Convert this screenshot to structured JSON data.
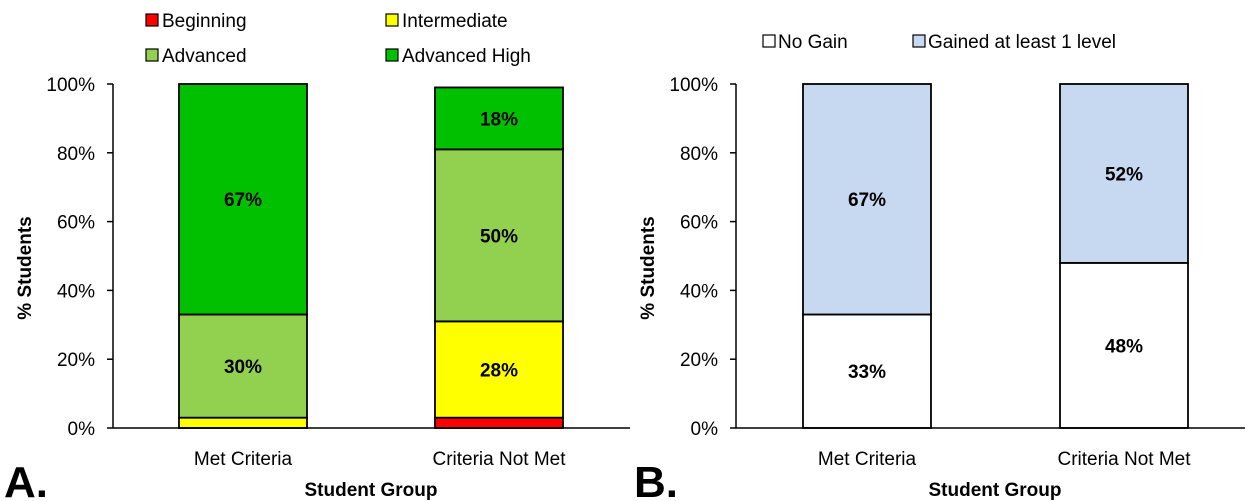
{
  "chart_data": [
    {
      "type": "bar",
      "stacked": true,
      "panel_label": "A.",
      "categories": [
        "Met Criteria",
        "Criteria Not Met"
      ],
      "series": [
        {
          "name": "Beginning",
          "color": "#ff0000",
          "values": [
            0,
            3
          ]
        },
        {
          "name": "Intermediate",
          "color": "#ffff00",
          "values": [
            3,
            28
          ]
        },
        {
          "name": "Advanced",
          "color": "#92d050",
          "values": [
            30,
            50
          ]
        },
        {
          "name": "Advanced High",
          "color": "#00c000",
          "values": [
            67,
            18
          ]
        }
      ],
      "data_labels": [
        {
          "category": 0,
          "series": 2,
          "text": "30%"
        },
        {
          "category": 0,
          "series": 3,
          "text": "67%"
        },
        {
          "category": 1,
          "series": 1,
          "text": "28%"
        },
        {
          "category": 1,
          "series": 2,
          "text": "50%"
        },
        {
          "category": 1,
          "series": 3,
          "text": "18%"
        }
      ],
      "xlabel": "Student Group",
      "ylabel": "% Students",
      "ylim": [
        0,
        100
      ],
      "yticks": [
        "0%",
        "20%",
        "40%",
        "60%",
        "80%",
        "100%"
      ],
      "legend_position": "top",
      "grid": false
    },
    {
      "type": "bar",
      "stacked": true,
      "panel_label": "B.",
      "categories": [
        "Met Criteria",
        "Criteria Not Met"
      ],
      "series": [
        {
          "name": "No Gain",
          "color": "#ffffff",
          "values": [
            33,
            48
          ]
        },
        {
          "name": "Gained at least 1 level",
          "color": "#c6d9f1",
          "values": [
            67,
            52
          ]
        }
      ],
      "data_labels": [
        {
          "category": 0,
          "series": 0,
          "text": "33%"
        },
        {
          "category": 0,
          "series": 1,
          "text": "67%"
        },
        {
          "category": 1,
          "series": 0,
          "text": "48%"
        },
        {
          "category": 1,
          "series": 1,
          "text": "52%"
        }
      ],
      "xlabel": "Student Group",
      "ylabel": "% Students",
      "ylim": [
        0,
        100
      ],
      "yticks": [
        "0%",
        "20%",
        "40%",
        "60%",
        "80%",
        "100%"
      ],
      "legend_position": "top",
      "grid": false
    }
  ]
}
